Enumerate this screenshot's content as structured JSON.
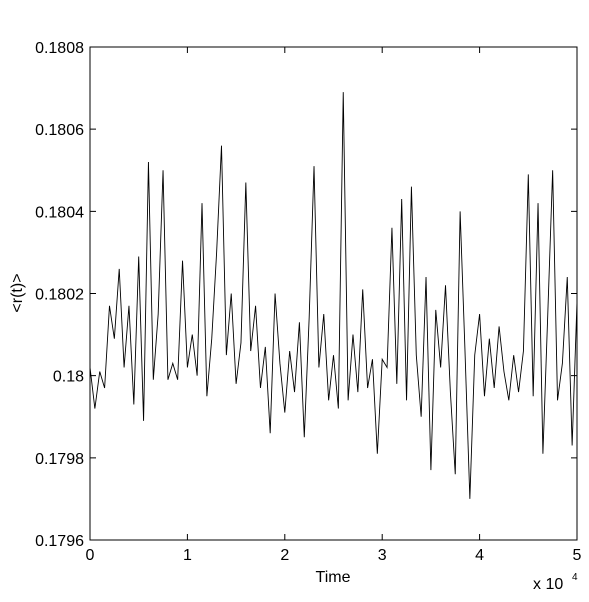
{
  "chart_data": {
    "type": "line",
    "x_label": "Time",
    "y_label": "<r(t)>",
    "x_exponent_base": "x 10",
    "x_exponent_power": "4",
    "x": [
      0,
      0.05,
      0.1,
      0.15,
      0.2,
      0.25,
      0.3,
      0.35,
      0.4,
      0.45,
      0.5,
      0.55,
      0.6,
      0.65,
      0.7,
      0.75,
      0.8,
      0.85,
      0.9,
      0.95,
      1,
      1.05,
      1.1,
      1.15,
      1.2,
      1.25,
      1.3,
      1.35,
      1.4,
      1.45,
      1.5,
      1.55,
      1.6,
      1.65,
      1.7,
      1.75,
      1.8,
      1.85,
      1.9,
      1.95,
      2,
      2.05,
      2.1,
      2.15,
      2.2,
      2.25,
      2.3,
      2.35,
      2.4,
      2.45,
      2.5,
      2.55,
      2.6,
      2.65,
      2.7,
      2.75,
      2.8,
      2.85,
      2.9,
      2.95,
      3,
      3.05,
      3.1,
      3.15,
      3.2,
      3.25,
      3.3,
      3.35,
      3.4,
      3.45,
      3.5,
      3.55,
      3.6,
      3.65,
      3.7,
      3.75,
      3.8,
      3.85,
      3.9,
      3.95,
      4,
      4.05,
      4.1,
      4.15,
      4.2,
      4.25,
      4.3,
      4.35,
      4.4,
      4.45,
      4.5,
      4.55,
      4.6,
      4.65,
      4.7,
      4.75,
      4.8,
      4.85,
      4.9,
      4.95,
      5
    ],
    "series": [
      {
        "color": "#000000",
        "values": [
          0.18002,
          0.17992,
          0.18001,
          0.17997,
          0.18017,
          0.18009,
          0.18026,
          0.18002,
          0.18017,
          0.17993,
          0.18029,
          0.17989,
          0.18052,
          0.17999,
          0.18015,
          0.1805,
          0.17999,
          0.18003,
          0.17999,
          0.18028,
          0.18002,
          0.1801,
          0.18,
          0.18042,
          0.17995,
          0.18009,
          0.1803,
          0.18056,
          0.18005,
          0.1802,
          0.17998,
          0.18008,
          0.18047,
          0.18006,
          0.18017,
          0.17997,
          0.18007,
          0.17986,
          0.1802,
          0.18003,
          0.17991,
          0.18006,
          0.17996,
          0.18013,
          0.17985,
          0.18014,
          0.18051,
          0.18002,
          0.18015,
          0.17994,
          0.18005,
          0.17992,
          0.18069,
          0.17994,
          0.1801,
          0.17996,
          0.18021,
          0.17997,
          0.18004,
          0.17981,
          0.18004,
          0.18002,
          0.18036,
          0.17998,
          0.18043,
          0.17994,
          0.18046,
          0.18005,
          0.1799,
          0.18024,
          0.17977,
          0.18016,
          0.18002,
          0.18022,
          0.17996,
          0.17976,
          0.1804,
          0.18006,
          0.1797,
          0.18005,
          0.18015,
          0.17995,
          0.18009,
          0.17997,
          0.18012,
          0.18001,
          0.17994,
          0.18005,
          0.17996,
          0.18006,
          0.18049,
          0.17995,
          0.18042,
          0.17981,
          0.18015,
          0.1805,
          0.17994,
          0.18003,
          0.18024,
          0.17983,
          0.18018
        ]
      }
    ],
    "xlim": [
      0,
      5
    ],
    "xticks": [
      0,
      1,
      2,
      3,
      4,
      5
    ],
    "ylim": [
      0.1796,
      0.1808
    ],
    "yticks": [
      0.1796,
      0.1798,
      0.18,
      0.1802,
      0.1804,
      0.1806,
      0.1808
    ]
  }
}
